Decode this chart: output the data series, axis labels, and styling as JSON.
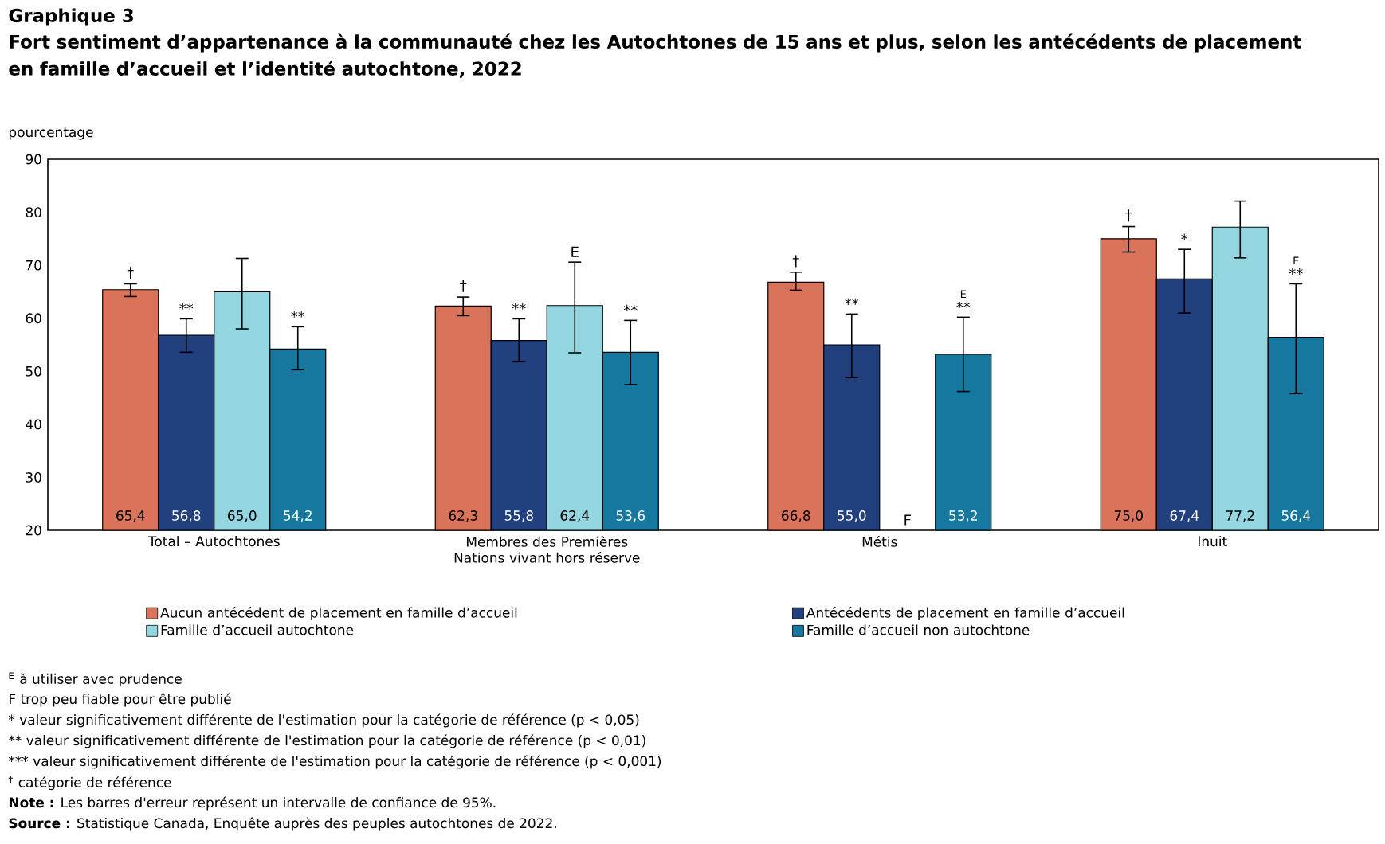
{
  "chart_data": {
    "type": "bar",
    "title": "Graphique 3",
    "subtitle": "Fort sentiment d’appartenance à la communauté chez les Autochtones de 15 ans et plus, selon les antécédents de placement en famille d’accueil et l’identité autochtone, 2022",
    "ylabel": "pourcentage",
    "categories": [
      "Total – Autochtones",
      "Membres des Premières Nations vivant hors réserve",
      "Métis",
      "Inuit"
    ],
    "series": [
      {
        "name": "Aucun antécédent de placement en famille d’accueil",
        "color": "#d9735a",
        "values": [
          65.4,
          62.3,
          66.8,
          75.0
        ],
        "value_labels": [
          "65,4",
          "62,3",
          "66,8",
          "75,0"
        ],
        "errors": [
          [
            64.1,
            66.5
          ],
          [
            60.5,
            64.0
          ],
          [
            65.3,
            68.7
          ],
          [
            72.5,
            77.3
          ]
        ]
      },
      {
        "name": "Antécédents de placement en famille d’accueil",
        "color": "#223f7e",
        "values": [
          56.8,
          55.8,
          55.0,
          67.4
        ],
        "value_labels": [
          "56,8",
          "55,8",
          "55,0",
          "67,4"
        ],
        "errors": [
          [
            53.6,
            59.9
          ],
          [
            51.8,
            59.9
          ],
          [
            48.8,
            60.8
          ],
          [
            61.0,
            73.0
          ]
        ]
      },
      {
        "name": "Famille d’accueil autochtone",
        "color": "#93d6df",
        "values": [
          65.0,
          62.4,
          null,
          77.2
        ],
        "value_labels": [
          "65,0",
          "62,4",
          null,
          "77,2"
        ],
        "errors": [
          [
            58.0,
            71.3
          ],
          [
            53.5,
            70.6
          ],
          null,
          [
            71.4,
            82.1
          ]
        ]
      },
      {
        "name": "Famille d’accueil non autochtone",
        "color": "#16789f",
        "values": [
          54.2,
          53.6,
          53.2,
          56.4
        ],
        "value_labels": [
          "54,2",
          "53,6",
          "53,2",
          "56,4"
        ],
        "errors": [
          [
            50.3,
            58.4
          ],
          [
            47.5,
            59.6
          ],
          [
            46.2,
            60.2
          ],
          [
            45.8,
            66.5
          ]
        ]
      }
    ],
    "ylim": [
      20,
      90
    ],
    "yticks": [
      20,
      30,
      40,
      50,
      60,
      70,
      80,
      90
    ],
    "legend": "bottom",
    "annotations": [
      "†",
      "**",
      "**",
      "†",
      "**",
      "E",
      "**",
      "†",
      "**",
      "F",
      "**",
      "E",
      "†",
      "*",
      "**",
      "E",
      "$^{E}$ à utiliser avec prudence",
      "F trop peu fiable pour être publié",
      "* valeur significativement différente de l'estimation pour la catégorie de référence (p < 0,05)",
      "** valeur significativement différente de l'estimation pour la catégorie de référence (p < 0,01)",
      "*** valeur significativement différente de l'estimation pour la catégorie de référence (p < 0,001)",
      "$^{†}$ catégorie de référence",
      "**Note :** Les barres d'erreur représent un intervalle de confiance de 95%.",
      "**Source :** Statistique Canada, Enquête auprès des peuples autochtones de 2022."
    ]
  }
}
